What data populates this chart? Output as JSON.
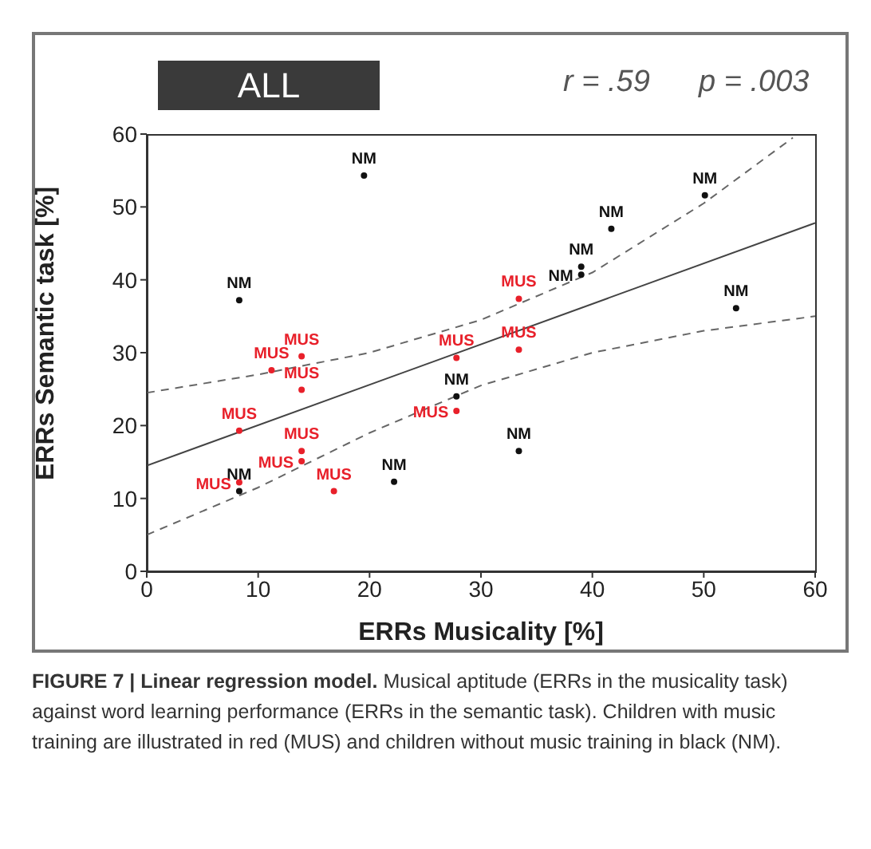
{
  "chart_data": {
    "type": "scatter",
    "title": "ALL",
    "xlabel": "ERRs Musicality [%]",
    "ylabel": "ERRs Semantic task [%]",
    "xlim": [
      0,
      60
    ],
    "xticks": [
      0,
      10,
      20,
      30,
      40,
      50,
      60
    ],
    "ylim": [
      0,
      60
    ],
    "yticks": [
      0,
      10,
      20,
      30,
      40,
      50,
      60
    ],
    "marker": "circle",
    "annotations": [
      "r = .59",
      "p = .003",
      "FIGURE 7 | Linear regression model. Musical aptitude (ERRs in the musicality task) against word learning performance (ERRs in the semantic task). Children with music training are illustrated in red (MUS) and children without music training in black (NM)."
    ],
    "series": [
      {
        "name": "NM",
        "color": "#111111",
        "x": [
          19.5,
          8.3,
          27.8,
          39,
          39,
          41.7,
          50.1,
          52.9,
          33.4,
          22.2,
          8.3
        ],
        "values": [
          54.3,
          37.2,
          24,
          41.8,
          40.7,
          47,
          51.6,
          36.1,
          16.5,
          12.3,
          11
        ]
      },
      {
        "name": "MUS",
        "color": "#e8202a",
        "x": [
          13.9,
          11.2,
          13.9,
          27.8,
          33.4,
          33.4,
          8.3,
          13.9,
          13.9,
          8.3,
          16.8,
          27.8
        ],
        "values": [
          29.5,
          27.6,
          24.9,
          29.3,
          37.4,
          30.4,
          19.3,
          16.5,
          15.1,
          12.2,
          11,
          22
        ]
      },
      {
        "type": "line",
        "color": "#444444",
        "line_style": "solid",
        "marker": "none",
        "x": [
          0,
          60
        ],
        "values": [
          14.5,
          47.8
        ]
      },
      {
        "type": "line",
        "color": "#666666",
        "line_style": "dashed",
        "marker": "none",
        "x": [
          0,
          10,
          20,
          30,
          40,
          50,
          58
        ],
        "values": [
          24.5,
          27,
          30,
          34.5,
          41,
          50.5,
          59.5
        ]
      },
      {
        "type": "line",
        "color": "#666666",
        "line_style": "dashed",
        "marker": "none",
        "x": [
          0,
          10,
          20,
          30,
          40,
          50,
          60
        ],
        "values": [
          5,
          11.5,
          19,
          25.5,
          30,
          33,
          35
        ]
      }
    ]
  }
}
